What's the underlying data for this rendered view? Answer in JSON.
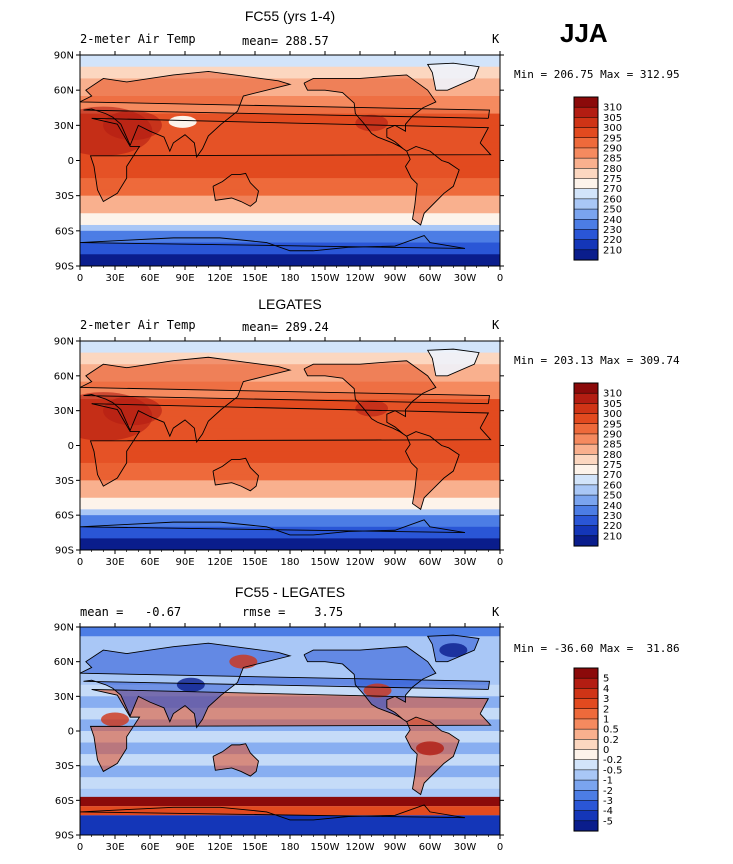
{
  "season": "JJA",
  "panels": [
    {
      "title": "FC55 (yrs 1-4)",
      "sub_left": "2-meter Air Temp",
      "sub_mid": "mean= 288.57",
      "sub_right": "K",
      "minmax": "Min = 206.75 Max = 312.95"
    },
    {
      "title": "LEGATES",
      "sub_left": "2-meter Air Temp",
      "sub_mid": "mean= 289.24",
      "sub_right": "K",
      "minmax": "Min = 203.13 Max = 309.74"
    },
    {
      "title": "FC55 - LEGATES",
      "sub_left": "mean =   -0.67",
      "sub_mid": "rmse =    3.75",
      "sub_right": "K",
      "minmax": "Min = -36.60 Max =  31.86"
    }
  ],
  "axes": {
    "lat_labels": [
      "90N",
      "60N",
      "30N",
      "0",
      "30S",
      "60S",
      "90S"
    ],
    "lon_labels": [
      "0",
      "30E",
      "60E",
      "90E",
      "120E",
      "150E",
      "180",
      "150W",
      "120W",
      "90W",
      "60W",
      "30W",
      "0"
    ]
  },
  "colorbars": {
    "temperature": {
      "labels": [
        "310",
        "305",
        "300",
        "295",
        "290",
        "285",
        "280",
        "275",
        "270",
        "260",
        "250",
        "240",
        "230",
        "220",
        "210"
      ],
      "colors": [
        "#8b0a0a",
        "#b31d12",
        "#cf3416",
        "#e24a1f",
        "#ee6a3b",
        "#f58a5f",
        "#f9b08e",
        "#fcd7c0",
        "#fdf3ea",
        "#d2e4fa",
        "#a9c7f6",
        "#7aa4ef",
        "#4c7de5",
        "#2a56d6",
        "#1436b8",
        "#0a1d8c"
      ]
    },
    "difference": {
      "labels": [
        "5",
        "4",
        "3",
        "2",
        "1",
        "0.5",
        "0.2",
        "0",
        "-0.2",
        "-0.5",
        "-1",
        "-2",
        "-3",
        "-4",
        "-5"
      ],
      "colors": [
        "#8b0a0a",
        "#b31d12",
        "#cf3416",
        "#e24a1f",
        "#ee6a3b",
        "#f58a5f",
        "#f9b08e",
        "#fcd7c0",
        "#fdf3ea",
        "#d2e4fa",
        "#a9c7f6",
        "#7aa4ef",
        "#4c7de5",
        "#2a56d6",
        "#1436b8",
        "#0a1d8c"
      ]
    }
  },
  "chart_data": [
    {
      "type": "heatmap",
      "title": "FC55 (yrs 1-4)",
      "variable": "2-meter Air Temp",
      "units": "K",
      "mean": 288.57,
      "min": 206.75,
      "max": 312.95,
      "ylim": [
        -90,
        90
      ],
      "xlim": [
        0,
        360
      ]
    },
    {
      "type": "heatmap",
      "title": "LEGATES",
      "variable": "2-meter Air Temp",
      "units": "K",
      "mean": 289.24,
      "min": 203.13,
      "max": 309.74,
      "ylim": [
        -90,
        90
      ],
      "xlim": [
        0,
        360
      ]
    },
    {
      "type": "heatmap",
      "title": "FC55 - LEGATES",
      "units": "K",
      "mean": -0.67,
      "rmse": 3.75,
      "min": -36.6,
      "max": 31.86,
      "ylim": [
        -90,
        90
      ],
      "xlim": [
        0,
        360
      ]
    }
  ]
}
